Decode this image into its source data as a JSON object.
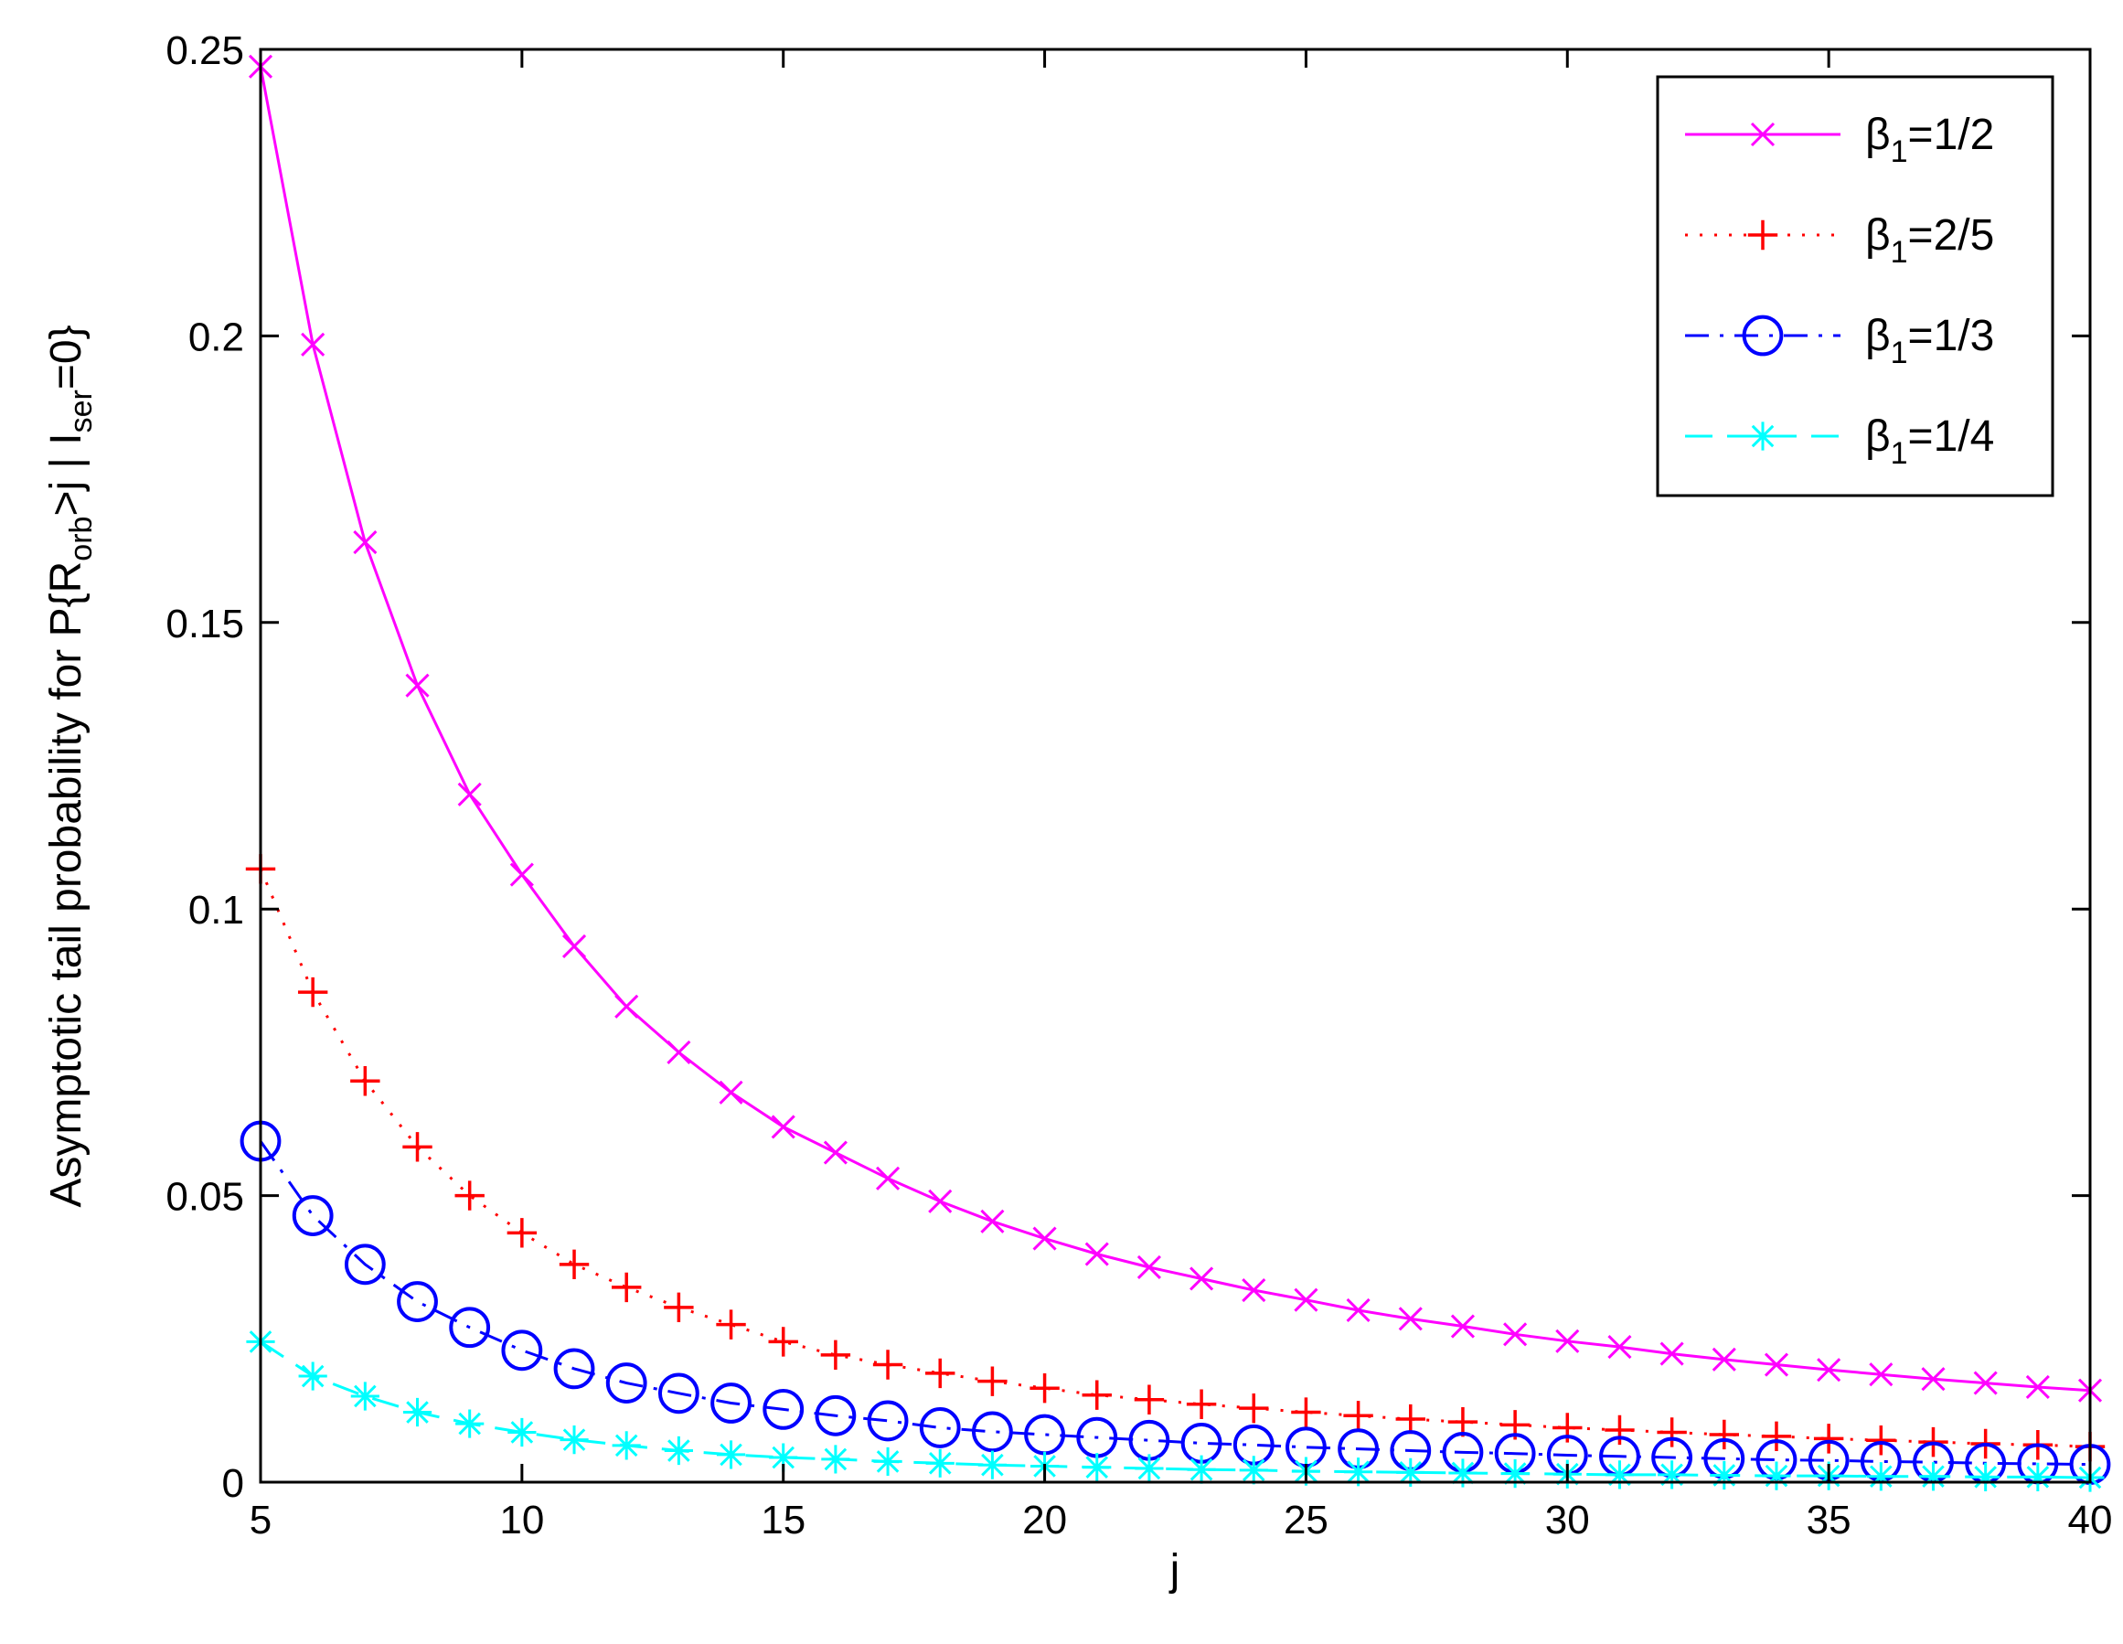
{
  "chart_data": {
    "type": "line",
    "xlabel": "j",
    "ylabel": {
      "main": "Asymptotic tail probability for P{R",
      "sub1": "orb",
      "mid": ">j | I",
      "sub2": "ser",
      "end": "=0}"
    },
    "xlim": [
      5,
      40
    ],
    "ylim": [
      0,
      0.25
    ],
    "xticks": [
      "5",
      "10",
      "15",
      "20",
      "25",
      "30",
      "35",
      "40"
    ],
    "yticks": [
      "0",
      "0.05",
      "0.1",
      "0.15",
      "0.2",
      "0.25"
    ],
    "grid": false,
    "legend_position": "top-right",
    "x": [
      5,
      6,
      7,
      8,
      9,
      10,
      11,
      12,
      13,
      14,
      15,
      16,
      17,
      18,
      19,
      20,
      21,
      22,
      23,
      24,
      25,
      26,
      27,
      28,
      29,
      30,
      31,
      32,
      33,
      34,
      35,
      36,
      37,
      38,
      39,
      40
    ],
    "series": [
      {
        "name": "β1=1/2",
        "legend": {
          "prefix": "β",
          "sub": "1",
          "suffix": "=1/2"
        },
        "color": "#ff00ff",
        "line_style": "solid",
        "marker": "x",
        "values": [
          0.247,
          0.1985,
          0.164,
          0.139,
          0.12,
          0.106,
          0.0935,
          0.083,
          0.075,
          0.068,
          0.062,
          0.0575,
          0.053,
          0.049,
          0.0455,
          0.0425,
          0.0398,
          0.0375,
          0.0355,
          0.0335,
          0.0318,
          0.03,
          0.0285,
          0.0272,
          0.0258,
          0.0246,
          0.0236,
          0.0224,
          0.0214,
          0.0205,
          0.0196,
          0.0188,
          0.018,
          0.0173,
          0.0166,
          0.016
        ]
      },
      {
        "name": "β1=2/5",
        "legend": {
          "prefix": "β",
          "sub": "1",
          "suffix": "=2/5"
        },
        "color": "#ff0000",
        "line_style": "dotted",
        "marker": "+",
        "values": [
          0.107,
          0.0855,
          0.07,
          0.0585,
          0.05,
          0.0435,
          0.038,
          0.034,
          0.0305,
          0.0275,
          0.0245,
          0.0222,
          0.0205,
          0.019,
          0.0176,
          0.0164,
          0.0152,
          0.0144,
          0.0136,
          0.0129,
          0.0122,
          0.0116,
          0.011,
          0.0105,
          0.01,
          0.0095,
          0.0091,
          0.0087,
          0.0083,
          0.008,
          0.0076,
          0.0073,
          0.007,
          0.0067,
          0.0065,
          0.0062
        ]
      },
      {
        "name": "β1=1/3",
        "legend": {
          "prefix": "β",
          "sub": "1",
          "suffix": "=1/3"
        },
        "color": "#0000ff",
        "line_style": "dashdot",
        "marker": "o",
        "values": [
          0.0595,
          0.0465,
          0.038,
          0.0315,
          0.027,
          0.023,
          0.0198,
          0.0173,
          0.0155,
          0.0138,
          0.0127,
          0.0116,
          0.0107,
          0.0095,
          0.0088,
          0.0083,
          0.0078,
          0.0073,
          0.0068,
          0.0065,
          0.0061,
          0.0058,
          0.0055,
          0.0052,
          0.005,
          0.0047,
          0.0045,
          0.0043,
          0.0041,
          0.0039,
          0.0038,
          0.0036,
          0.0035,
          0.0033,
          0.0032,
          0.0031
        ]
      },
      {
        "name": "β1=1/4",
        "legend": {
          "prefix": "β",
          "sub": "1",
          "suffix": "=1/4"
        },
        "color": "#00ffff",
        "line_style": "dashed",
        "marker": "*",
        "values": [
          0.0245,
          0.0185,
          0.015,
          0.0122,
          0.0102,
          0.0087,
          0.0074,
          0.0064,
          0.0055,
          0.0048,
          0.0043,
          0.004,
          0.0036,
          0.0033,
          0.003,
          0.0028,
          0.0026,
          0.0024,
          0.0022,
          0.0021,
          0.0019,
          0.0018,
          0.0017,
          0.0016,
          0.0015,
          0.0014,
          0.0013,
          0.0013,
          0.0012,
          0.0011,
          0.0011,
          0.001,
          0.001,
          0.0009,
          0.0009,
          0.0008
        ]
      }
    ]
  }
}
